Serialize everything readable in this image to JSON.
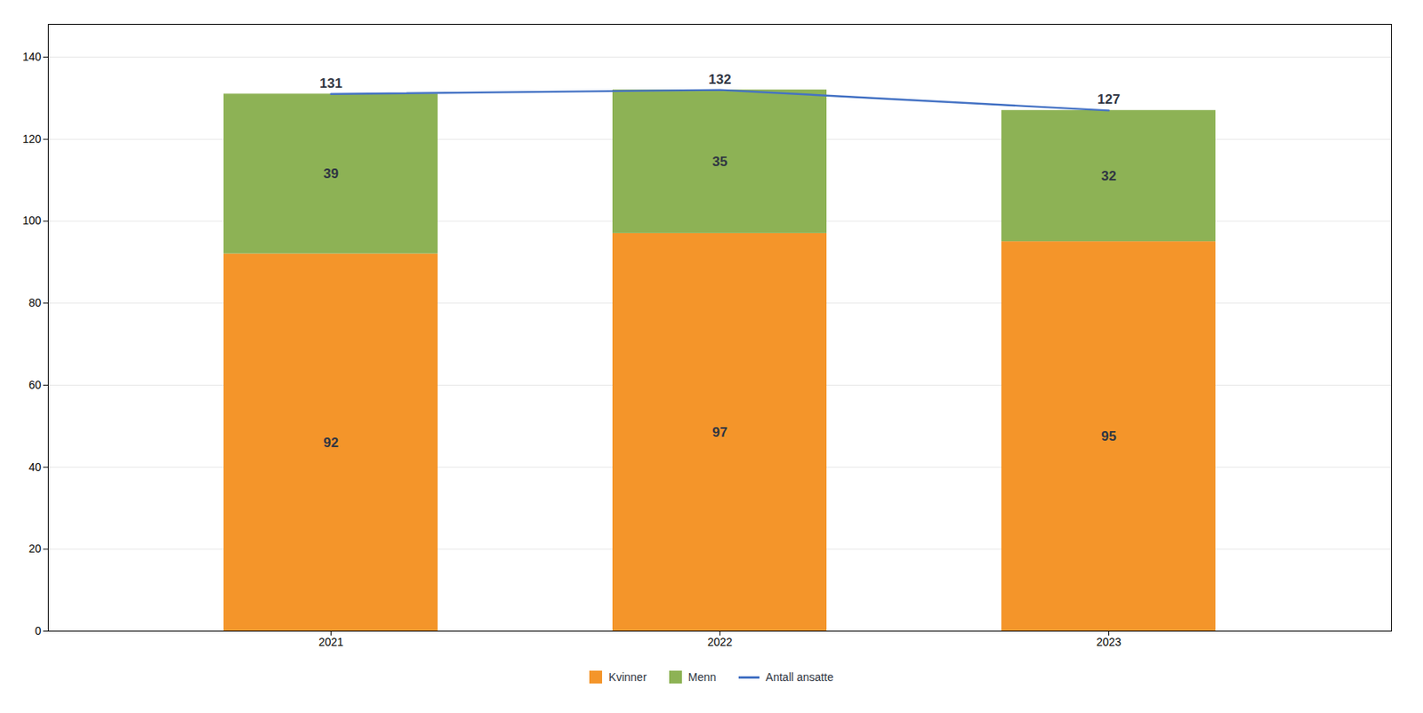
{
  "chart_data": {
    "type": "bar",
    "stacked": true,
    "categories": [
      "2021",
      "2022",
      "2023"
    ],
    "series": [
      {
        "name": "Kvinner",
        "color": "#F4952A",
        "values": [
          92,
          97,
          95
        ]
      },
      {
        "name": "Menn",
        "color": "#8DB255",
        "values": [
          39,
          35,
          32
        ]
      },
      {
        "name": "Antall ansatte",
        "type": "line",
        "color": "#4472C4",
        "values": [
          131,
          132,
          127
        ]
      }
    ],
    "ylim": [
      0,
      148
    ],
    "yticks": [
      0,
      20,
      40,
      60,
      80,
      100,
      120,
      140
    ],
    "grid": true,
    "data_labels": true,
    "legend": "bottom"
  }
}
